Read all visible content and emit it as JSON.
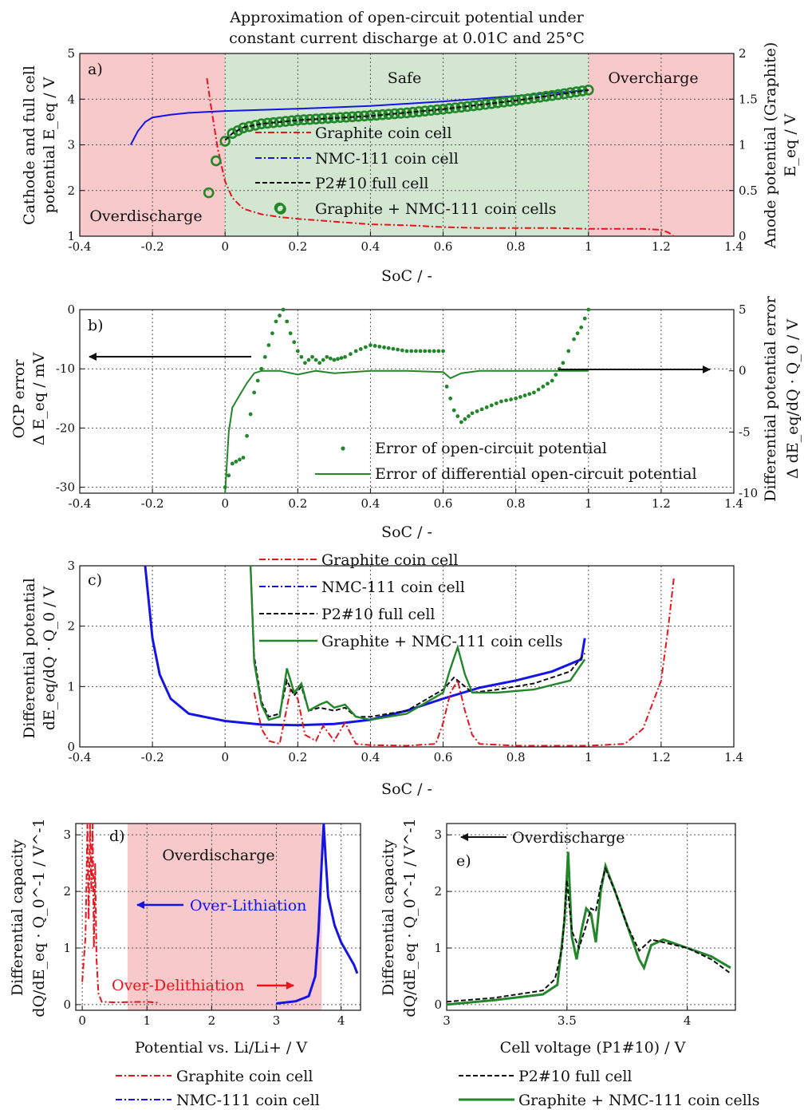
{
  "title": [
    "Approximation of open-circuit potential under",
    "constant current discharge at 0.01C and 25°C"
  ],
  "colors": {
    "graphite": "#e8141c",
    "nmc": "#1414e6",
    "full": "#111111",
    "combined": "#22862a",
    "overcharge_bg": "#f7c9cb",
    "safe_bg": "#d3e6d2"
  },
  "panel_a": {
    "tag": "a)",
    "xlabel": "SoC / -",
    "ylabel_lines": [
      "Cathode and full cell",
      "potential E_eq / V"
    ],
    "y2label_lines": [
      "Anode potential (Graphite)",
      "E_eq / V"
    ],
    "region_labels": {
      "safe": "Safe",
      "overcharge": "Overcharge",
      "overdischarge": "Overdischarge"
    },
    "legend": [
      "Graphite coin cell",
      "NMC-111 coin cell",
      "P2#10 full cell",
      "Graphite + NMC-111 coin cells"
    ]
  },
  "panel_b": {
    "tag": "b)",
    "xlabel": "SoC / -",
    "ylabel_lines": [
      "OCP error",
      "Δ E_eq / mV"
    ],
    "y2label_lines": [
      "Differential potential error",
      "Δ dE_eq/dQ · Q_0 / V"
    ],
    "legend": [
      "Error of open-circuit potential",
      "Error of differential open-circuit potential"
    ]
  },
  "panel_c": {
    "tag": "c)",
    "xlabel": "SoC / -",
    "ylabel_lines": [
      "Differential potential",
      "dE_eq/dQ · Q_0 / V"
    ],
    "legend": [
      "Graphite coin cell",
      "NMC-111 coin cell",
      "P2#10 full cell",
      "Graphite + NMC-111 coin cells"
    ]
  },
  "panel_d": {
    "tag": "d)",
    "xlabel": "Potential vs. Li/Li+ / V",
    "ylabel_lines": [
      "Differential capacity",
      "dQ/dE_eq · Q_0^-1 / V^-1"
    ],
    "region_label": "Overdischarge",
    "arrow_left": "Over-Lithiation",
    "arrow_right": "Over-Delithiation",
    "legend": [
      "Graphite coin cell",
      "NMC-111 coin cell"
    ]
  },
  "panel_e": {
    "tag": "e)",
    "xlabel": "Cell voltage (P1#10) / V",
    "ylabel_lines": [
      "Differential capacity",
      "dQ/dE_eq · Q_0^-1 / V^-1"
    ],
    "arrow_label": "Overdischarge",
    "legend": [
      "P2#10 full cell",
      "Graphite + NMC-111 coin cells"
    ]
  },
  "chart_data": [
    {
      "id": "a",
      "type": "line",
      "xlim": [
        -0.4,
        1.4
      ],
      "ylim": [
        1,
        5
      ],
      "y2lim": [
        0,
        2
      ],
      "xticks": [
        -0.4,
        -0.2,
        0,
        0.2,
        0.4,
        0.6,
        0.8,
        1,
        1.2,
        1.4
      ],
      "yticks": [
        1,
        2,
        3,
        4,
        5
      ],
      "y2ticks": [
        0,
        0.5,
        1,
        1.5,
        2
      ],
      "grid": true,
      "regions": [
        {
          "name": "Overdischarge",
          "x": [
            -0.4,
            0
          ]
        },
        {
          "name": "Safe",
          "x": [
            0,
            1
          ]
        },
        {
          "name": "Overcharge",
          "x": [
            1,
            1.4
          ]
        }
      ],
      "series": [
        {
          "name": "NMC-111 coin cell",
          "axis": "left",
          "x": [
            -0.26,
            -0.24,
            -0.22,
            -0.2,
            -0.15,
            -0.1,
            0,
            0.2,
            0.4,
            0.6,
            0.8,
            1.0
          ],
          "y": [
            3.0,
            3.3,
            3.5,
            3.6,
            3.66,
            3.7,
            3.74,
            3.79,
            3.85,
            3.95,
            4.07,
            4.2
          ]
        },
        {
          "name": "P2#10 full cell",
          "axis": "left",
          "x": [
            0.0,
            0.02,
            0.05,
            0.1,
            0.2,
            0.4,
            0.6,
            0.8,
            1.0
          ],
          "y": [
            3.1,
            3.25,
            3.38,
            3.46,
            3.54,
            3.63,
            3.78,
            3.97,
            4.2
          ]
        },
        {
          "name": "Graphite + NMC-111 coin cells",
          "axis": "left",
          "marker": "circle",
          "x": [
            -0.045,
            -0.025,
            0.0,
            0.02,
            0.05,
            0.1,
            0.2,
            0.3,
            0.4,
            0.5,
            0.6,
            0.7,
            0.8,
            0.9,
            1.0
          ],
          "y": [
            1.95,
            2.65,
            3.08,
            3.25,
            3.37,
            3.46,
            3.54,
            3.59,
            3.64,
            3.7,
            3.78,
            3.87,
            3.97,
            4.08,
            4.2
          ]
        },
        {
          "name": "Graphite coin cell",
          "axis": "right",
          "x": [
            -0.05,
            -0.04,
            -0.02,
            0.0,
            0.02,
            0.05,
            0.1,
            0.15,
            0.2,
            0.3,
            0.4,
            0.5,
            0.6,
            0.7,
            0.9,
            1.0,
            1.15,
            1.2,
            1.22,
            1.235
          ],
          "y": [
            1.73,
            1.45,
            0.95,
            0.6,
            0.42,
            0.3,
            0.24,
            0.21,
            0.19,
            0.16,
            0.13,
            0.12,
            0.1,
            0.09,
            0.09,
            0.08,
            0.08,
            0.07,
            0.04,
            0.0
          ]
        }
      ]
    },
    {
      "id": "b",
      "type": "scatter",
      "xlim": [
        -0.4,
        1.4
      ],
      "ylim": [
        -31,
        0
      ],
      "y2lim": [
        -10,
        5
      ],
      "xticks": [
        -0.4,
        -0.2,
        0,
        0.2,
        0.4,
        0.6,
        0.8,
        1,
        1.2,
        1.4
      ],
      "yticks": [
        -30,
        -20,
        -10,
        0
      ],
      "y2ticks": [
        -10,
        -5,
        0,
        5
      ],
      "grid": true,
      "series": [
        {
          "name": "Error of open-circuit potential",
          "axis": "left",
          "marker": "dot",
          "x": [
            0.0,
            0.02,
            0.05,
            0.08,
            0.1,
            0.12,
            0.14,
            0.16,
            0.18,
            0.2,
            0.22,
            0.24,
            0.26,
            0.28,
            0.3,
            0.33,
            0.36,
            0.4,
            0.45,
            0.5,
            0.55,
            0.6,
            0.61,
            0.63,
            0.65,
            0.68,
            0.72,
            0.76,
            0.8,
            0.85,
            0.9,
            0.93,
            0.96,
            0.98,
            1.0
          ],
          "y": [
            -30,
            -26,
            -25,
            -14,
            -10,
            -6,
            -2,
            0,
            -4,
            -7,
            -9,
            -8,
            -9,
            -8,
            -8.5,
            -8,
            -7,
            -6,
            -6.5,
            -7,
            -7,
            -7,
            -13,
            -17,
            -19,
            -17.5,
            -16.5,
            -15.5,
            -15,
            -14,
            -12,
            -9,
            -5,
            -3,
            0
          ]
        },
        {
          "name": "Error of differential open-circuit potential",
          "axis": "right",
          "x": [
            0.0,
            0.01,
            0.02,
            0.04,
            0.06,
            0.08,
            0.1,
            0.15,
            0.2,
            0.25,
            0.3,
            0.4,
            0.5,
            0.6,
            0.62,
            0.65,
            0.7,
            0.8,
            0.9,
            0.95,
            1.0
          ],
          "y": [
            -10,
            -5,
            -3,
            -2,
            -1,
            -0.2,
            0,
            0,
            -0.3,
            0,
            -0.2,
            0,
            0,
            -0.1,
            -0.6,
            -0.2,
            0,
            0,
            0,
            0,
            0
          ]
        }
      ]
    },
    {
      "id": "c",
      "type": "line",
      "xlim": [
        -0.4,
        1.4
      ],
      "ylim": [
        0,
        3
      ],
      "xticks": [
        -0.4,
        -0.2,
        0,
        0.2,
        0.4,
        0.6,
        0.8,
        1,
        1.2,
        1.4
      ],
      "yticks": [
        0,
        1,
        2,
        3
      ],
      "grid": true,
      "series": [
        {
          "name": "Graphite coin cell",
          "x": [
            0.08,
            0.1,
            0.12,
            0.15,
            0.18,
            0.2,
            0.22,
            0.25,
            0.27,
            0.3,
            0.33,
            0.36,
            0.4,
            0.5,
            0.58,
            0.6,
            0.62,
            0.64,
            0.66,
            0.68,
            0.7,
            0.8,
            1.0,
            1.1,
            1.15,
            1.2,
            1.22,
            1.235
          ],
          "y": [
            0.9,
            0.3,
            0.1,
            0.05,
            0.95,
            0.8,
            0.2,
            0.1,
            0.35,
            0.1,
            0.4,
            0.05,
            0.03,
            0.02,
            0.05,
            0.4,
            0.9,
            1.1,
            0.6,
            0.2,
            0.05,
            0.02,
            0.02,
            0.05,
            0.3,
            1.1,
            2.0,
            2.8
          ]
        },
        {
          "name": "NMC-111 coin cell",
          "x": [
            -0.22,
            -0.2,
            -0.18,
            -0.15,
            -0.1,
            0.0,
            0.1,
            0.2,
            0.3,
            0.4,
            0.5,
            0.6,
            0.7,
            0.8,
            0.9,
            0.98,
            0.99
          ],
          "y": [
            3.0,
            1.8,
            1.2,
            0.8,
            0.55,
            0.43,
            0.37,
            0.36,
            0.38,
            0.45,
            0.6,
            0.8,
            0.98,
            1.1,
            1.25,
            1.45,
            1.8
          ]
        },
        {
          "name": "P2#10 full cell",
          "x": [
            0.07,
            0.08,
            0.1,
            0.12,
            0.15,
            0.17,
            0.19,
            0.21,
            0.23,
            0.26,
            0.3,
            0.33,
            0.36,
            0.4,
            0.5,
            0.6,
            0.63,
            0.65,
            0.68,
            0.75,
            0.85,
            0.95,
            0.99
          ],
          "y": [
            3.0,
            1.5,
            0.75,
            0.5,
            0.55,
            1.1,
            0.85,
            1.0,
            0.6,
            0.65,
            0.6,
            0.65,
            0.5,
            0.5,
            0.6,
            0.95,
            1.15,
            1.05,
            0.9,
            0.95,
            1.05,
            1.25,
            1.55
          ]
        },
        {
          "name": "Graphite + NMC-111 coin cells",
          "x": [
            0.07,
            0.08,
            0.1,
            0.12,
            0.15,
            0.17,
            0.19,
            0.21,
            0.23,
            0.26,
            0.28,
            0.3,
            0.33,
            0.36,
            0.4,
            0.5,
            0.6,
            0.62,
            0.64,
            0.66,
            0.68,
            0.75,
            0.85,
            0.95,
            0.99
          ],
          "y": [
            3.0,
            1.4,
            0.7,
            0.45,
            0.5,
            1.3,
            0.9,
            1.05,
            0.6,
            0.7,
            0.75,
            0.65,
            0.7,
            0.5,
            0.45,
            0.55,
            0.9,
            1.3,
            1.65,
            1.2,
            0.9,
            0.9,
            0.95,
            1.1,
            1.45
          ]
        }
      ]
    },
    {
      "id": "d",
      "type": "line",
      "xlim": [
        -0.1,
        4.3
      ],
      "ylim": [
        -0.1,
        3.2
      ],
      "xticks": [
        0,
        1,
        2,
        3,
        4
      ],
      "yticks": [
        0,
        1,
        2,
        3
      ],
      "grid": true,
      "regions": [
        {
          "name": "Overdischarge",
          "x": [
            0.7,
            3.7
          ]
        }
      ],
      "series": [
        {
          "name": "Graphite coin cell",
          "x": [
            0.0,
            0.05,
            0.08,
            0.1,
            0.12,
            0.14,
            0.16,
            0.18,
            0.2,
            0.22,
            0.25,
            0.3,
            0.5,
            1.0,
            1.2
          ],
          "y": [
            0.4,
            1.2,
            3.2,
            1.5,
            3.2,
            2.0,
            3.2,
            1.0,
            2.5,
            0.8,
            0.2,
            0.05,
            0.04,
            0.05,
            0.03
          ]
        },
        {
          "name": "NMC-111 coin cell",
          "x": [
            3.0,
            3.3,
            3.5,
            3.6,
            3.65,
            3.7,
            3.73,
            3.76,
            3.8,
            3.9,
            4.0,
            4.1,
            4.2,
            4.25
          ],
          "y": [
            0.02,
            0.06,
            0.15,
            0.5,
            1.3,
            2.5,
            3.2,
            2.6,
            1.9,
            1.4,
            1.1,
            0.9,
            0.7,
            0.55
          ]
        }
      ]
    },
    {
      "id": "e",
      "type": "line",
      "xlim": [
        3.0,
        4.2
      ],
      "ylim": [
        -0.1,
        3.2
      ],
      "xticks": [
        3,
        3.5,
        4
      ],
      "yticks": [
        0,
        1,
        2,
        3
      ],
      "grid": true,
      "series": [
        {
          "name": "P2#10 full cell",
          "x": [
            3.0,
            3.2,
            3.4,
            3.45,
            3.48,
            3.5,
            3.52,
            3.55,
            3.58,
            3.6,
            3.62,
            3.64,
            3.66,
            3.7,
            3.75,
            3.8,
            3.85,
            3.9,
            4.0,
            4.1,
            4.18
          ],
          "y": [
            0.05,
            0.12,
            0.25,
            0.45,
            1.0,
            2.2,
            1.3,
            1.0,
            1.4,
            1.7,
            1.65,
            2.1,
            2.4,
            2.0,
            1.4,
            0.95,
            1.15,
            1.1,
            1.0,
            0.8,
            0.55
          ]
        },
        {
          "name": "Graphite + NMC-111 coin cells",
          "x": [
            3.0,
            3.2,
            3.4,
            3.46,
            3.49,
            3.505,
            3.52,
            3.54,
            3.56,
            3.58,
            3.6,
            3.62,
            3.64,
            3.66,
            3.7,
            3.75,
            3.8,
            3.82,
            3.85,
            3.9,
            4.0,
            4.1,
            4.18
          ],
          "y": [
            0.0,
            0.08,
            0.18,
            0.35,
            1.5,
            2.7,
            1.2,
            0.8,
            1.3,
            1.7,
            1.6,
            1.1,
            2.0,
            2.45,
            2.0,
            1.4,
            0.8,
            0.65,
            1.05,
            1.15,
            1.0,
            0.85,
            0.65
          ]
        }
      ]
    }
  ]
}
